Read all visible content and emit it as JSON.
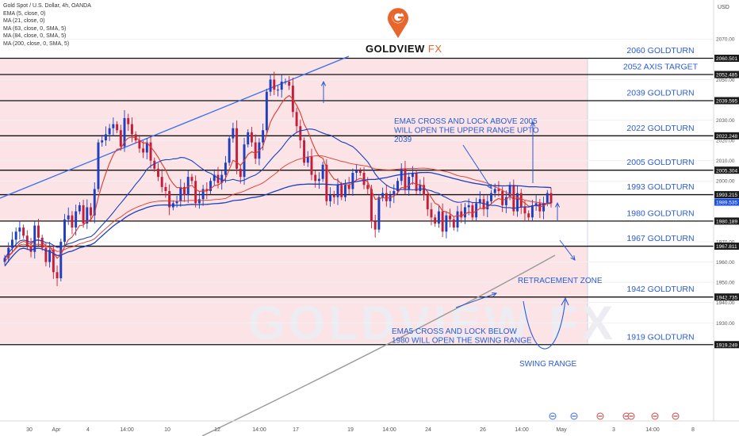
{
  "header": {
    "symbol": "Gold Spot / U.S. Dollar, 4h, OANDA",
    "indicators": [
      "EMA (5, close, 0)",
      "MA (21, close, 0)",
      "MA (63, close, 0, SMA, 5)",
      "MA (84, close, 0, SMA, 5)",
      "MA (200, close, 0, SMA, 5)"
    ]
  },
  "brand": {
    "name": "GOLDVIEW",
    "suffix": "FX",
    "watermark": "GOLDVIEW FX"
  },
  "currency": "USD",
  "colors": {
    "bull": "#1f3fbf",
    "bear": "#c41e3a",
    "ema5": "#e0392c",
    "ma21": "#1a3fc0",
    "ma200": "#9a9a9a",
    "zone": "#fbe3e6",
    "channel": "#3a6ff0",
    "text_blue": "#2a5bd7"
  },
  "chart_data": {
    "type": "candlestick",
    "timeframe": "4h",
    "ylim": [
      1915,
      2075
    ],
    "yticks": [
      2070,
      2050,
      2030,
      2020,
      2010,
      2000,
      1970,
      1960,
      1950,
      1940,
      1930,
      1920
    ],
    "xticks": [
      "30",
      "Apr",
      "4",
      "14:00",
      "10",
      "12",
      "14:00",
      "17",
      "19",
      "14:00",
      "24",
      "26",
      "14:00",
      "May",
      "3",
      "14:00",
      "8"
    ],
    "price_labels": [
      {
        "price": 2060.501,
        "text": "2060.501",
        "style": "dark"
      },
      {
        "price": 2052.485,
        "text": "2052.485",
        "style": "dark"
      },
      {
        "price": 2039.595,
        "text": "2039.595",
        "style": "dark"
      },
      {
        "price": 2022.248,
        "text": "2022.248",
        "style": "dark"
      },
      {
        "price": 2005.304,
        "text": "2005.304",
        "style": "dark"
      },
      {
        "price": 1993.215,
        "text": "1993.215",
        "style": "dark"
      },
      {
        "price": 1989.535,
        "text": "1989.535",
        "style": "blue"
      },
      {
        "price": 1980.189,
        "text": "1980.189",
        "style": "dark"
      },
      {
        "price": 1967.811,
        "text": "1967.811",
        "style": "dark"
      },
      {
        "price": 1942.735,
        "text": "1942.735",
        "style": "dark"
      },
      {
        "price": 1919.249,
        "text": "1919.249",
        "style": "dark"
      }
    ],
    "levels": [
      {
        "price": 2060.501,
        "label": "2060 GOLDTURN"
      },
      {
        "price": 2052.485,
        "label": "2052 AXIS TARGET"
      },
      {
        "price": 2039.595,
        "label": "2039 GOLDTURN"
      },
      {
        "price": 2022.248,
        "label": "2022 GOLDTURN"
      },
      {
        "price": 2005.304,
        "label": "2005 GOLDTURN"
      },
      {
        "price": 1993.215,
        "label": "1993 GOLDTURN"
      },
      {
        "price": 1980.189,
        "label": "1980 GOLDTURN"
      },
      {
        "price": 1967.811,
        "label": "1967 GOLDTURN"
      },
      {
        "price": 1942.735,
        "label": "1942 GOLDTURN"
      },
      {
        "price": 1919.249,
        "label": "1919 GOLDTURN"
      }
    ],
    "annotations": [
      {
        "lines": [
          "EMA5 CROSS AND LOCK ABOVE 2005",
          "WILL OPEN THE UPPER RANGE UPTO",
          "2039"
        ]
      },
      {
        "lines": [
          "EMA5 CROSS AND LOCK BELOW",
          "1980 WILL OPEN THE SWING RANGE"
        ]
      },
      {
        "lines": [
          "RETRACEMENT ZONE"
        ]
      },
      {
        "lines": [
          "SWING RANGE"
        ]
      }
    ],
    "closes": [
      1962,
      1967,
      1971,
      1975,
      1977,
      1973,
      1968,
      1965,
      1978,
      1972,
      1967,
      1960,
      1966,
      1955,
      1952,
      1970,
      1981,
      1983,
      1977,
      1985,
      1988,
      1979,
      1987,
      1983,
      1996,
      2019,
      2020,
      2023,
      2026,
      2028,
      2025,
      2017,
      2031,
      2028,
      2023,
      2020,
      2016,
      2014,
      2019,
      2010,
      2006,
      2002,
      1997,
      1995,
      1987,
      1989,
      1990,
      1997,
      1993,
      2002,
      2000,
      1989,
      1991,
      1996,
      1995,
      2000,
      2003,
      1999,
      2003,
      2009,
      2021,
      2026,
      2006,
      2002,
      2018,
      2024,
      2019,
      2011,
      2019,
      2025,
      2044,
      2050,
      2045,
      2045,
      2049,
      2049,
      2047,
      2034,
      2027,
      2020,
      2009,
      2012,
      2003,
      2000,
      2001,
      2008,
      1990,
      1993,
      1992,
      1998,
      1992,
      1998,
      1996,
      2004,
      2005,
      2004,
      1998,
      1996,
      1980,
      1976,
      1992,
      1994,
      1990,
      1993,
      1995,
      2000,
      2006,
      1996,
      2002,
      2004,
      1995,
      1998,
      1993,
      1986,
      1982,
      1979,
      1985,
      1975,
      1983,
      1981,
      1977,
      1985,
      1982,
      1987,
      1988,
      1982,
      1989,
      1991,
      1986,
      1990,
      1994,
      1996,
      1995,
      1988,
      1992,
      1998,
      1985,
      1994,
      1987,
      1984,
      1982,
      1988,
      1989,
      1985,
      1989,
      1994,
      1989
    ]
  }
}
